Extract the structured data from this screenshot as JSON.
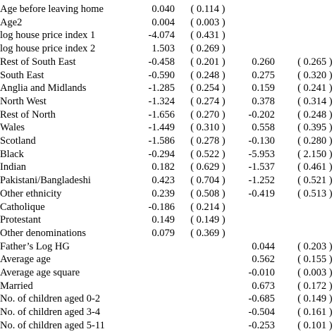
{
  "table": {
    "rows": [
      {
        "label": "Age before leaving home",
        "est1": "0.040",
        "se1": "( 0.114 )"
      },
      {
        "label": "Age2",
        "est1": "0.004",
        "se1": "( 0.003 )"
      },
      {
        "label": "log house price index 1",
        "est1": "-4.074",
        "se1": "( 0.431 )"
      },
      {
        "label": "log house price index 2",
        "est1": "1.503",
        "se1": "( 0.269 )"
      },
      {
        "label": "Rest of South East",
        "est1": "-0.458",
        "se1": "( 0.201 )",
        "est2": "0.260",
        "se2": "( 0.265 )"
      },
      {
        "label": "South East",
        "est1": "-0.590",
        "se1": "( 0.248 )",
        "est2": "0.275",
        "se2": "( 0.320 )"
      },
      {
        "label": "Anglia and Midlands",
        "est1": "-1.285",
        "se1": "( 0.254 )",
        "est2": "0.159",
        "se2": "( 0.241 )"
      },
      {
        "label": "North West",
        "est1": "-1.324",
        "se1": "( 0.274 )",
        "est2": "0.378",
        "se2": "( 0.314 )"
      },
      {
        "label": "Rest of North",
        "est1": "-1.656",
        "se1": "( 0.270 )",
        "est2": "-0.202",
        "se2": "( 0.248 )"
      },
      {
        "label": "Wales",
        "est1": "-1.449",
        "se1": "( 0.310 )",
        "est2": "0.558",
        "se2": "( 0.395 )"
      },
      {
        "label": "Scotland",
        "est1": "-1.586",
        "se1": "( 0.278 )",
        "est2": "-0.130",
        "se2": "( 0.280 )"
      },
      {
        "label": "Black",
        "est1": "-0.294",
        "se1": "( 0.522 )",
        "est2": "-5.953",
        "se2": "( 2.150 )"
      },
      {
        "label": "Indian",
        "est1": "0.182",
        "se1": "( 0.629 )",
        "est2": "-1.537",
        "se2": "( 0.461 )"
      },
      {
        "label": "Pakistani/Bangladeshi",
        "est1": "0.423",
        "se1": "( 0.704 )",
        "est2": "-1.252",
        "se2": "( 0.521 )"
      },
      {
        "label": "Other ethnicity",
        "est1": "0.239",
        "se1": "( 0.508 )",
        "est2": "-0.419",
        "se2": "( 0.513 )"
      },
      {
        "label": "Catholique",
        "est1": "-0.186",
        "se1": "( 0.214 )"
      },
      {
        "label": "Protestant",
        "est1": "0.149",
        "se1": "( 0.149 )"
      },
      {
        "label": "Other denominations",
        "est1": "0.079",
        "se1": "( 0.369 )"
      },
      {
        "label": "Father’s Log HG",
        "est2": "0.044",
        "se2": "( 0.203 )"
      },
      {
        "label": "Average age",
        "est2": "0.562",
        "se2": "( 0.155 )"
      },
      {
        "label": "Average age square",
        "est2": "-0.010",
        "se2": "( 0.003 )"
      },
      {
        "label": "Married",
        "est2": "0.673",
        "se2": "( 0.172 )"
      },
      {
        "label": "No. of children aged 0-2",
        "est2": "-0.685",
        "se2": "( 0.149 )"
      },
      {
        "label": "No. of children aged 3-4",
        "est2": "-0.504",
        "se2": "( 0.161 )"
      },
      {
        "label": "No. of children aged 5-11",
        "est2": "-0.253",
        "se2": "( 0.101 )"
      }
    ]
  }
}
